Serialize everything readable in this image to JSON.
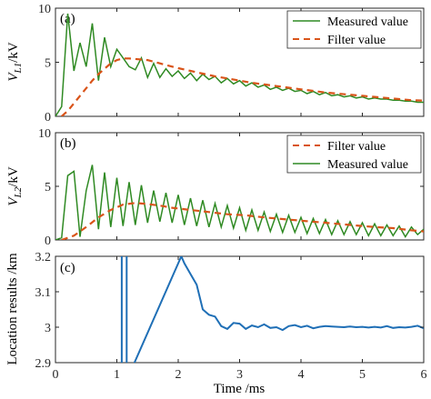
{
  "chart_data": [
    {
      "id": "a",
      "type": "line",
      "tag": "(a)",
      "ylabel_main": "V",
      "ylabel_sub": "L1",
      "ylabel_unit": "/kV",
      "xlim": [
        0,
        6
      ],
      "ylim": [
        0,
        10
      ],
      "yticks": [
        0,
        5,
        10
      ],
      "legend_position": "top-right",
      "colors": {
        "measured": "#2f8a23",
        "filter": "#d9541a"
      },
      "series": [
        {
          "name": "Measured value",
          "key": "measured",
          "x": [
            0,
            0.1,
            0.2,
            0.3,
            0.4,
            0.5,
            0.6,
            0.7,
            0.8,
            0.9,
            1.0,
            1.1,
            1.2,
            1.3,
            1.4,
            1.5,
            1.6,
            1.7,
            1.8,
            1.9,
            2.0,
            2.1,
            2.2,
            2.3,
            2.4,
            2.5,
            2.6,
            2.7,
            2.8,
            2.9,
            3.0,
            3.1,
            3.2,
            3.3,
            3.4,
            3.5,
            3.6,
            3.7,
            3.8,
            3.9,
            4.0,
            4.1,
            4.2,
            4.3,
            4.4,
            4.5,
            4.6,
            4.7,
            4.8,
            4.9,
            5.0,
            5.1,
            5.2,
            5.3,
            5.4,
            5.5,
            5.6,
            5.7,
            5.8,
            5.9,
            6.0
          ],
          "y": [
            0,
            0.9,
            9.5,
            4.2,
            6.8,
            4.6,
            8.6,
            3.3,
            7.3,
            4.6,
            6.2,
            5.4,
            4.6,
            4.3,
            5.4,
            3.6,
            4.9,
            3.6,
            4.4,
            3.7,
            4.2,
            3.5,
            4.0,
            3.3,
            3.9,
            3.4,
            3.7,
            3.1,
            3.5,
            3.0,
            3.3,
            2.8,
            3.1,
            2.7,
            2.9,
            2.5,
            2.7,
            2.4,
            2.6,
            2.3,
            2.4,
            2.1,
            2.3,
            2.0,
            2.2,
            1.9,
            2.0,
            1.8,
            1.9,
            1.7,
            1.8,
            1.6,
            1.7,
            1.6,
            1.6,
            1.5,
            1.5,
            1.4,
            1.4,
            1.3,
            1.3
          ]
        },
        {
          "name": "Filter value",
          "key": "filter",
          "x": [
            0.1,
            0.2,
            0.3,
            0.4,
            0.5,
            0.6,
            0.7,
            0.8,
            0.9,
            1.0,
            1.1,
            1.2,
            1.3,
            1.4,
            1.5,
            1.6,
            1.7,
            1.8,
            1.9,
            2.0,
            2.2,
            2.4,
            2.6,
            2.8,
            3.0,
            3.2,
            3.4,
            3.6,
            3.8,
            4.0,
            4.2,
            4.4,
            4.6,
            4.8,
            5.0,
            5.2,
            5.4,
            5.6,
            5.8,
            6.0
          ],
          "y": [
            0,
            0.5,
            1.2,
            1.9,
            2.6,
            3.3,
            3.9,
            4.4,
            4.9,
            5.2,
            5.35,
            5.35,
            5.3,
            5.25,
            5.2,
            5.05,
            4.9,
            4.75,
            4.6,
            4.45,
            4.2,
            3.95,
            3.7,
            3.5,
            3.3,
            3.1,
            2.95,
            2.8,
            2.65,
            2.5,
            2.35,
            2.2,
            2.1,
            2.0,
            1.9,
            1.8,
            1.7,
            1.6,
            1.5,
            1.45
          ]
        }
      ],
      "legend": [
        {
          "key": "measured",
          "label": "Measured value"
        },
        {
          "key": "filter",
          "label": "Filter value"
        }
      ]
    },
    {
      "id": "b",
      "type": "line",
      "tag": "(b)",
      "ylabel_main": "V",
      "ylabel_sub": "L2",
      "ylabel_unit": "/kV",
      "xlim": [
        0,
        6
      ],
      "ylim": [
        0,
        10
      ],
      "yticks": [
        0,
        5,
        10
      ],
      "legend_position": "top-right",
      "colors": {
        "measured": "#2f8a23",
        "filter": "#d9541a"
      },
      "series": [
        {
          "name": "Measured value",
          "key": "measured",
          "x": [
            0,
            0.1,
            0.2,
            0.3,
            0.4,
            0.5,
            0.6,
            0.7,
            0.8,
            0.9,
            1.0,
            1.1,
            1.2,
            1.3,
            1.4,
            1.5,
            1.6,
            1.7,
            1.8,
            1.9,
            2.0,
            2.1,
            2.2,
            2.3,
            2.4,
            2.5,
            2.6,
            2.7,
            2.8,
            2.9,
            3.0,
            3.1,
            3.2,
            3.3,
            3.4,
            3.5,
            3.6,
            3.7,
            3.8,
            3.9,
            4.0,
            4.1,
            4.2,
            4.3,
            4.4,
            4.5,
            4.6,
            4.7,
            4.8,
            4.9,
            5.0,
            5.1,
            5.2,
            5.3,
            5.4,
            5.5,
            5.6,
            5.7,
            5.8,
            5.9,
            6.0
          ],
          "y": [
            0,
            0.2,
            6.0,
            6.4,
            0.3,
            4.6,
            7.0,
            1.0,
            6.3,
            1.2,
            5.8,
            1.3,
            5.4,
            1.4,
            5.1,
            1.6,
            4.6,
            1.7,
            4.4,
            1.6,
            4.2,
            1.4,
            3.9,
            1.3,
            3.7,
            1.2,
            3.4,
            1.2,
            3.2,
            1.1,
            3.0,
            0.9,
            2.8,
            0.9,
            2.6,
            0.8,
            2.4,
            0.7,
            2.3,
            0.7,
            2.1,
            0.6,
            2.0,
            0.6,
            1.9,
            0.5,
            1.8,
            0.5,
            1.7,
            0.5,
            1.6,
            0.4,
            1.5,
            0.4,
            1.4,
            0.4,
            1.3,
            0.3,
            1.2,
            0.5,
            1.0
          ]
        },
        {
          "name": "Filter value",
          "key": "filter",
          "x": [
            0.1,
            0.3,
            0.5,
            0.7,
            0.9,
            1.1,
            1.3,
            1.5,
            1.7,
            1.9,
            2.2,
            2.5,
            2.8,
            3.1,
            3.4,
            3.7,
            4.0,
            4.3,
            4.6,
            4.9,
            5.2,
            5.5,
            5.8,
            6.0
          ],
          "y": [
            0,
            0.4,
            1.2,
            2.1,
            2.8,
            3.3,
            3.45,
            3.35,
            3.2,
            3.0,
            2.8,
            2.6,
            2.4,
            2.3,
            2.1,
            1.95,
            1.8,
            1.65,
            1.5,
            1.35,
            1.2,
            1.1,
            0.9,
            0.8
          ]
        }
      ],
      "legend": [
        {
          "key": "filter",
          "label": "Filter value"
        },
        {
          "key": "measured",
          "label": "Measured value"
        }
      ]
    },
    {
      "id": "c",
      "type": "line",
      "tag": "(c)",
      "ylabel": "Location results /km",
      "xlabel": "Time /ms",
      "xlim": [
        0,
        6
      ],
      "ylim": [
        2.9,
        3.2
      ],
      "yticks": [
        2.9,
        3.0,
        3.1,
        3.2
      ],
      "ytick_labels": [
        "2.9",
        "3",
        "3.1",
        "3.2"
      ],
      "xticks": [
        0,
        1,
        2,
        3,
        4,
        5,
        6
      ],
      "colors": {
        "location": "#1f6fb6"
      },
      "series": [
        {
          "name": "",
          "key": "location",
          "x": [
            1.08,
            1.08,
            1.16,
            1.16,
            2.05,
            2.1,
            2.2,
            2.3,
            2.4,
            2.5,
            2.6,
            2.7,
            2.8,
            2.9,
            3.0,
            3.1,
            3.2,
            3.3,
            3.4,
            3.5,
            3.6,
            3.7,
            3.8,
            3.9,
            4.0,
            4.1,
            4.2,
            4.3,
            4.4,
            4.5,
            4.6,
            4.7,
            4.8,
            4.9,
            5.0,
            5.1,
            5.2,
            5.3,
            5.4,
            5.5,
            5.6,
            5.7,
            5.8,
            5.9,
            6.0
          ],
          "y": [
            2.85,
            3.25,
            3.25,
            2.85,
            3.2,
            3.18,
            3.15,
            3.12,
            3.05,
            3.035,
            3.03,
            3.003,
            2.995,
            3.012,
            3.01,
            2.995,
            3.005,
            3.0,
            3.008,
            2.998,
            3.0,
            2.992,
            3.003,
            3.006,
            3.0,
            3.004,
            2.997,
            3.001,
            3.003,
            3.002,
            3.001,
            3.0,
            3.002,
            3.0,
            3.001,
            2.999,
            3.001,
            2.999,
            3.003,
            2.998,
            3.0,
            2.999,
            3.001,
            3.004,
            2.997
          ]
        }
      ]
    }
  ]
}
